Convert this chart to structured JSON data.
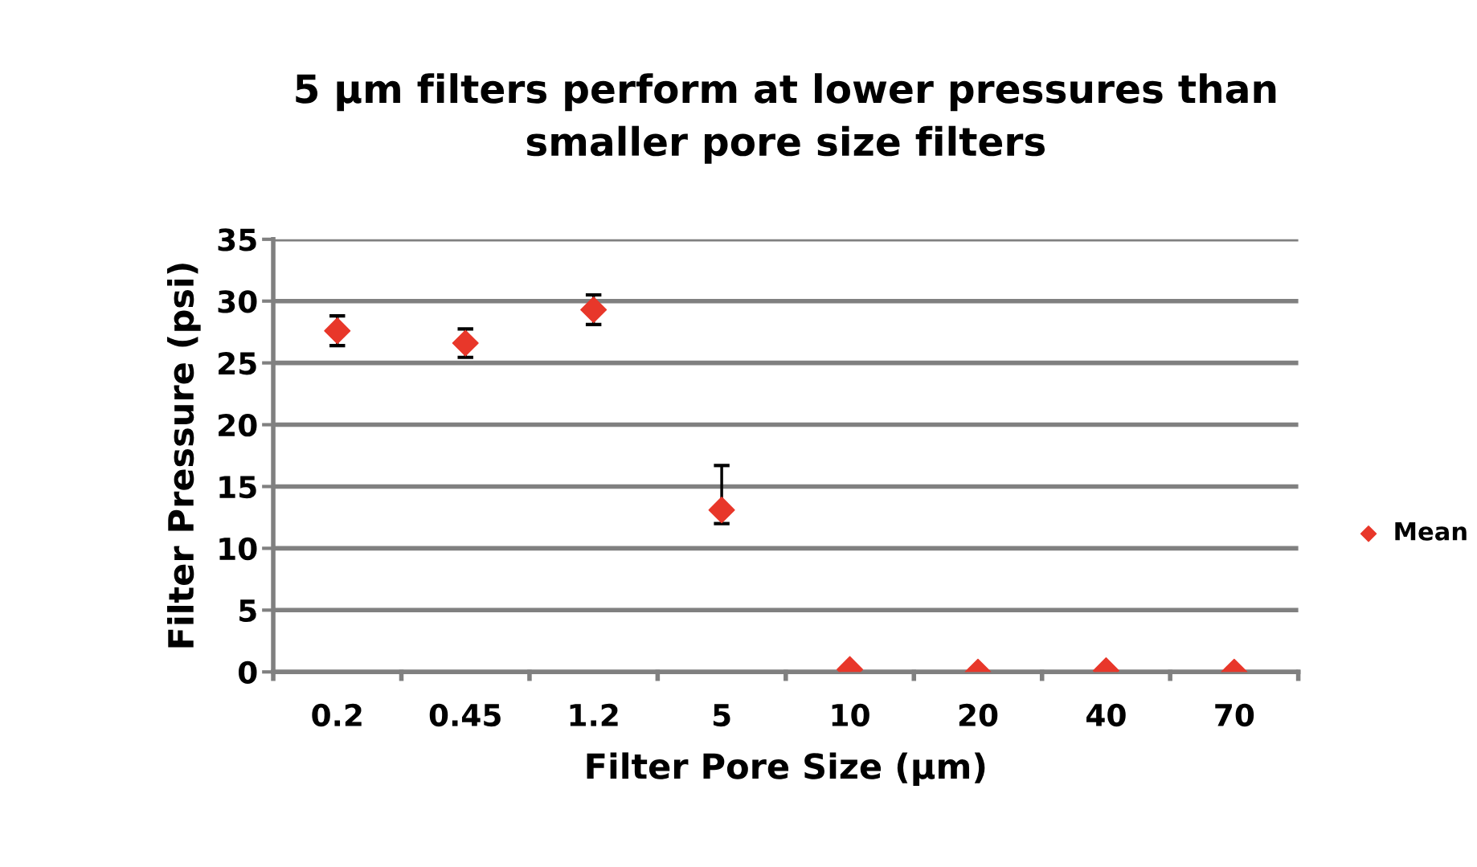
{
  "chart_data": {
    "type": "scatter",
    "title": "5 µm filters perform at lower pressures than\nsmaller pore size filters",
    "xlabel": "Filter Pore Size (µm)",
    "ylabel": "Filter Pressure (psi)",
    "categories": [
      "0.2",
      "0.45",
      "1.2",
      "5",
      "10",
      "20",
      "40",
      "70"
    ],
    "series": [
      {
        "name": "Mean",
        "color": "#e8372a",
        "values": [
          27.6,
          26.6,
          29.3,
          13.1,
          0.2,
          0,
          0.1,
          0
        ],
        "errors": [
          1.2,
          1.15,
          1.2,
          [
            12.0,
            16.7
          ],
          null,
          null,
          null,
          null
        ]
      }
    ],
    "ylim": [
      0,
      35
    ],
    "yticks": [
      0,
      5,
      10,
      15,
      20,
      25,
      30,
      35
    ],
    "grid": "y",
    "legend": "right",
    "marker": "diamond"
  }
}
